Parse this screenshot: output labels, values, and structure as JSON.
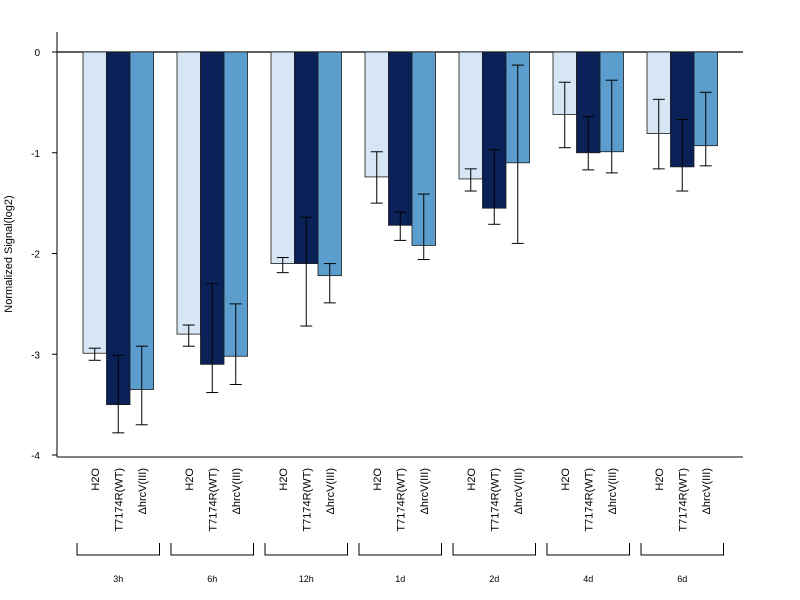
{
  "chart_data": {
    "type": "bar",
    "ylabel": "Normalized Signal(log2)",
    "ylim": [
      -4,
      0.1
    ],
    "yticks": [
      0,
      -1,
      -2,
      -3,
      -4
    ],
    "groups": [
      "3h",
      "6h",
      "12h",
      "1d",
      "2d",
      "4d",
      "6d"
    ],
    "categories": [
      "H2O",
      "T7174R(WT)",
      "ΔhrcV(III)"
    ],
    "colors": [
      "#d6e6f4",
      "#0b2259",
      "#5b9ecd"
    ],
    "values": [
      [
        -2.99,
        -3.5,
        -3.35
      ],
      [
        -2.8,
        -3.1,
        -3.02
      ],
      [
        -2.1,
        -2.1,
        -2.22
      ],
      [
        -1.24,
        -1.72,
        -1.92
      ],
      [
        -1.26,
        -1.55,
        -1.1
      ],
      [
        -0.62,
        -1.0,
        -0.99
      ],
      [
        -0.81,
        -1.14,
        -0.93
      ]
    ],
    "errors_low": [
      [
        -3.06,
        -3.78,
        -3.7
      ],
      [
        -2.92,
        -3.38,
        -3.3
      ],
      [
        -2.19,
        -2.72,
        -2.49
      ],
      [
        -1.5,
        -1.87,
        -2.06
      ],
      [
        -1.38,
        -1.71,
        -1.9
      ],
      [
        -0.95,
        -1.17,
        -1.2
      ],
      [
        -1.16,
        -1.38,
        -1.13
      ]
    ],
    "errors_high": [
      [
        -2.94,
        -3.01,
        -2.92
      ],
      [
        -2.71,
        -2.3,
        -2.5
      ],
      [
        -2.04,
        -1.64,
        -2.1
      ],
      [
        -0.99,
        -1.59,
        -1.41
      ],
      [
        -1.16,
        -0.97,
        -0.13
      ],
      [
        -0.3,
        -0.64,
        -0.28
      ],
      [
        -0.47,
        -0.67,
        -0.4
      ]
    ]
  }
}
